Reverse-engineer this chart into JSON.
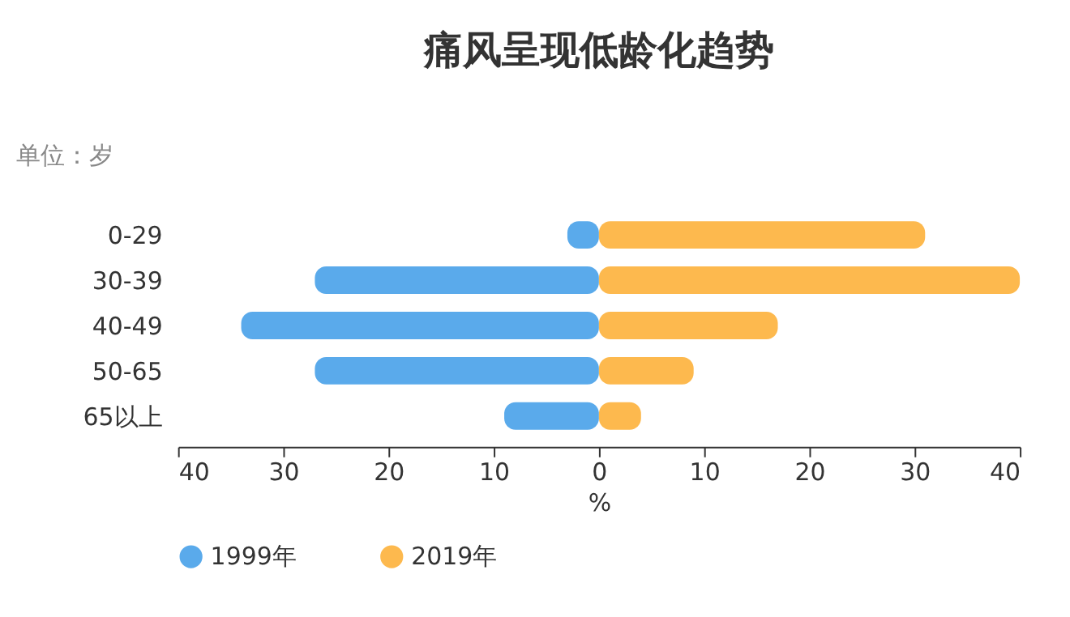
{
  "chart_data": {
    "type": "bar",
    "orientation": "horizontal",
    "title": "痛风呈现低龄化趋势",
    "annotations": [
      "单位：岁"
    ],
    "xlabel": "%",
    "categories": [
      "0-29",
      "30-39",
      "40-49",
      "50-65",
      "65以上"
    ],
    "series": [
      {
        "name": "1999年",
        "color": "#5aaaeb",
        "values": [
          -3,
          -27,
          -34,
          -27,
          -9
        ]
      },
      {
        "name": "2019年",
        "color": "#fdb94e",
        "values": [
          31,
          40,
          17,
          9,
          4
        ]
      }
    ],
    "xlim": [
      -40,
      40
    ],
    "xticks": [
      {
        "value": -40,
        "label": "40"
      },
      {
        "value": -30,
        "label": "30"
      },
      {
        "value": -20,
        "label": "20"
      },
      {
        "value": -10,
        "label": "10"
      },
      0,
      10,
      20,
      30,
      40
    ],
    "grid": false,
    "legend": "bottom",
    "stacked": true
  }
}
